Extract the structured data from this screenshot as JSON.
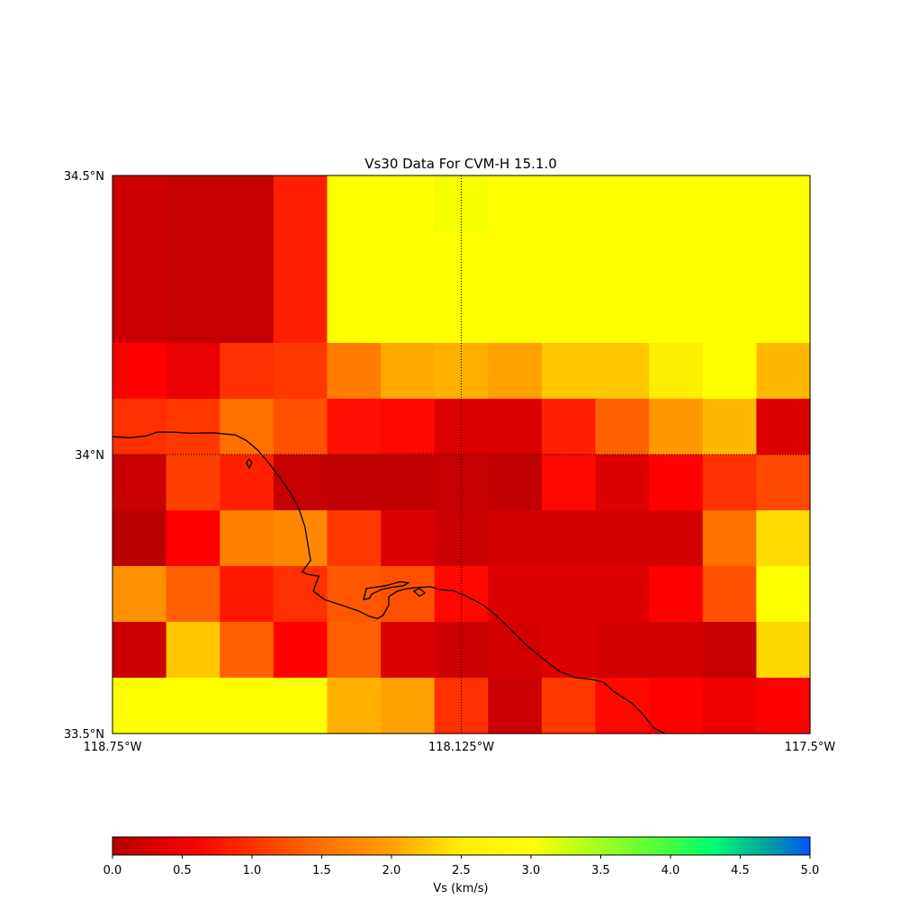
{
  "title": "Vs30 Data For CVM-H 15.1.0",
  "map": {
    "lat_range": [
      33.5,
      34.5
    ],
    "lon_range": [
      -118.75,
      -117.5
    ],
    "lat_labels": [
      {
        "value": 34.5,
        "label": "34.5°N"
      },
      {
        "value": 34.0,
        "label": "34°N"
      },
      {
        "value": 33.5,
        "label": "33.5°N"
      }
    ],
    "lon_labels": [
      {
        "value": -118.75,
        "label": "118.75°W"
      },
      {
        "value": -118.125,
        "label": "118.125°W"
      },
      {
        "value": -117.5,
        "label": "117.5°W"
      }
    ],
    "gridlines": {
      "lat": [
        34.0
      ],
      "lon": [
        -118.125
      ],
      "style": "dotted"
    },
    "grid_rows": 10,
    "grid_cols": 13,
    "grid_colors": [
      [
        "#cc0000",
        "#c50000",
        "#c50000",
        "#ff1f00",
        "#ffff00",
        "#ffff00",
        "#f4ff00",
        "#ffff00",
        "#ffff00",
        "#ffff00",
        "#ffff00",
        "#ffff00",
        "#ffff00"
      ],
      [
        "#cc0000",
        "#c50000",
        "#c50000",
        "#ff1f00",
        "#ffff00",
        "#ffff00",
        "#ffff00",
        "#ffff00",
        "#ffff00",
        "#ffff00",
        "#ffff00",
        "#ffff00",
        "#ffff00"
      ],
      [
        "#cc0000",
        "#c50000",
        "#c50000",
        "#ff1f00",
        "#ffff00",
        "#ffff00",
        "#ffff00",
        "#ffff00",
        "#ffff00",
        "#ffff00",
        "#ffff00",
        "#ffff00",
        "#ffff00"
      ],
      [
        "#ff0000",
        "#ea0000",
        "#ff3000",
        "#ff3800",
        "#ff7c00",
        "#ffa800",
        "#ffb000",
        "#ffa000",
        "#ffc800",
        "#ffc800",
        "#ffee00",
        "#ffff00",
        "#ffb800"
      ],
      [
        "#ff3000",
        "#ff3800",
        "#ff7000",
        "#ff5000",
        "#ff1000",
        "#ff0800",
        "#dd0000",
        "#dd0000",
        "#ff2000",
        "#ff6000",
        "#ff9800",
        "#ffb800",
        "#dd0000"
      ],
      [
        "#c80000",
        "#ff4000",
        "#ff2000",
        "#c40000",
        "#c00000",
        "#c00000",
        "#c40000",
        "#c00000",
        "#ff0800",
        "#dd0000",
        "#ff0000",
        "#ff3000",
        "#ff4800"
      ],
      [
        "#bb0000",
        "#ff0000",
        "#ff8000",
        "#ff8800",
        "#ff3800",
        "#dd0000",
        "#cc0000",
        "#d40000",
        "#d40000",
        "#d40000",
        "#d40000",
        "#ff7000",
        "#ffda00"
      ],
      [
        "#ff9000",
        "#ff6000",
        "#ff1800",
        "#ff3000",
        "#ff5800",
        "#ff5000",
        "#ff0800",
        "#dd0000",
        "#dd0000",
        "#dd0000",
        "#ff0000",
        "#ff5000",
        "#ffff00"
      ],
      [
        "#cc0000",
        "#ffc800",
        "#ff6000",
        "#ff0000",
        "#ff6000",
        "#dd0000",
        "#cc0000",
        "#d40000",
        "#dd0000",
        "#d20000",
        "#d00000",
        "#c40000",
        "#ffd800"
      ],
      [
        "#ffff00",
        "#ffff00",
        "#ffff00",
        "#ffff00",
        "#ffb000",
        "#ffa000",
        "#ff3000",
        "#cc0000",
        "#ff3800",
        "#ff0800",
        "#ff0000",
        "#ee0000",
        "#ff0000"
      ]
    ],
    "coastline": [
      [
        -118.75,
        34.032
      ],
      [
        -118.72,
        34.03
      ],
      [
        -118.69,
        34.033
      ],
      [
        -118.67,
        34.04
      ],
      [
        -118.64,
        34.04
      ],
      [
        -118.61,
        34.038
      ],
      [
        -118.57,
        34.039
      ],
      [
        -118.55,
        34.037
      ],
      [
        -118.53,
        34.035
      ],
      [
        -118.51,
        34.025
      ],
      [
        -118.49,
        34.008
      ],
      [
        -118.47,
        33.985
      ],
      [
        -118.45,
        33.958
      ],
      [
        -118.43,
        33.93
      ],
      [
        -118.415,
        33.9
      ],
      [
        -118.405,
        33.87
      ],
      [
        -118.4,
        33.84
      ],
      [
        -118.395,
        33.81
      ],
      [
        -118.41,
        33.79
      ],
      [
        -118.4,
        33.785
      ],
      [
        -118.38,
        33.782
      ],
      [
        -118.385,
        33.77
      ],
      [
        -118.39,
        33.755
      ],
      [
        -118.37,
        33.74
      ],
      [
        -118.34,
        33.73
      ],
      [
        -118.31,
        33.72
      ],
      [
        -118.29,
        33.71
      ],
      [
        -118.275,
        33.706
      ],
      [
        -118.265,
        33.712
      ],
      [
        -118.255,
        33.73
      ],
      [
        -118.255,
        33.745
      ],
      [
        -118.24,
        33.755
      ],
      [
        -118.22,
        33.76
      ],
      [
        -118.2,
        33.762
      ],
      [
        -118.18,
        33.763
      ],
      [
        -118.165,
        33.758
      ],
      [
        -118.14,
        33.756
      ],
      [
        -118.12,
        33.748
      ],
      [
        -118.1,
        33.738
      ],
      [
        -118.085,
        33.73
      ],
      [
        -118.07,
        33.718
      ],
      [
        -118.04,
        33.69
      ],
      [
        -118.01,
        33.66
      ],
      [
        -117.98,
        33.635
      ],
      [
        -117.95,
        33.612
      ],
      [
        -117.92,
        33.6
      ],
      [
        -117.89,
        33.597
      ],
      [
        -117.87,
        33.592
      ],
      [
        -117.85,
        33.574
      ],
      [
        -117.82,
        33.555
      ],
      [
        -117.8,
        33.535
      ],
      [
        -117.78,
        33.51
      ],
      [
        -117.76,
        33.5
      ]
    ],
    "coastline_islands": [
      [
        [
          -118.3,
          33.74
        ],
        [
          -118.295,
          33.76
        ],
        [
          -118.28,
          33.762
        ],
        [
          -118.26,
          33.765
        ],
        [
          -118.235,
          33.772
        ],
        [
          -118.22,
          33.77
        ],
        [
          -118.228,
          33.765
        ],
        [
          -118.25,
          33.762
        ],
        [
          -118.268,
          33.758
        ],
        [
          -118.285,
          33.75
        ],
        [
          -118.29,
          33.742
        ],
        [
          -118.3,
          33.74
        ]
      ],
      [
        [
          -118.21,
          33.755
        ],
        [
          -118.2,
          33.76
        ],
        [
          -118.19,
          33.752
        ],
        [
          -118.2,
          33.746
        ],
        [
          -118.21,
          33.755
        ]
      ],
      [
        [
          -118.51,
          33.985
        ],
        [
          -118.505,
          33.992
        ],
        [
          -118.5,
          33.985
        ],
        [
          -118.505,
          33.976
        ],
        [
          -118.51,
          33.985
        ]
      ]
    ]
  },
  "colorbar": {
    "label": "Vs (km/s)",
    "range": [
      0.0,
      5.0
    ],
    "ticks": [
      "0.0",
      "0.5",
      "1.0",
      "1.5",
      "2.0",
      "2.5",
      "3.0",
      "3.5",
      "4.0",
      "4.5",
      "5.0"
    ],
    "gradient_stops": [
      {
        "v": 0.0,
        "color": "#b40000"
      },
      {
        "v": 0.6,
        "color": "#ff0000"
      },
      {
        "v": 1.5,
        "color": "#ff7000"
      },
      {
        "v": 2.0,
        "color": "#ffa000"
      },
      {
        "v": 2.5,
        "color": "#ffee00"
      },
      {
        "v": 3.0,
        "color": "#ffff00"
      },
      {
        "v": 3.5,
        "color": "#a0ff20"
      },
      {
        "v": 4.0,
        "color": "#40ff40"
      },
      {
        "v": 4.3,
        "color": "#00ff70"
      },
      {
        "v": 4.7,
        "color": "#00a0a0"
      },
      {
        "v": 5.0,
        "color": "#0055ff"
      }
    ]
  }
}
